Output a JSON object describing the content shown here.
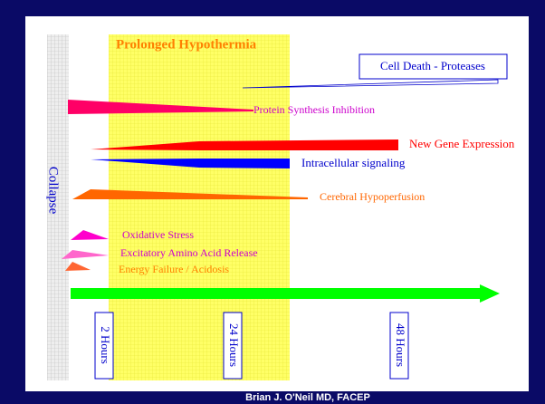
{
  "title": "Prolonged Hypothermia",
  "left_label": "Collapse",
  "events": [
    {
      "label": "Cell Death - Proteases"
    },
    {
      "label": "Protein Synthesis Inhibition"
    },
    {
      "label": "New Gene Expression"
    },
    {
      "label": "Intracellular signaling"
    },
    {
      "label": "Cerebral Hypoperfusion"
    },
    {
      "label": "Oxidative Stress"
    },
    {
      "label": "Excitatory Amino Acid Release"
    },
    {
      "label": "Energy Failure / Acidosis"
    }
  ],
  "time_marks": [
    "2 Hours",
    "24 Hours",
    "48 Hours"
  ],
  "footer": "Brian J. O'Neil MD, FACEP"
}
